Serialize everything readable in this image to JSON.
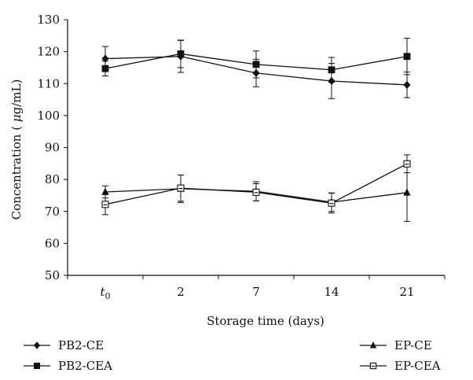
{
  "chart_data": {
    "type": "line",
    "title": "",
    "xlabel": "Storage time (days)",
    "ylabel": "Concentration (μg/mL)",
    "categories": [
      "t0",
      "2",
      "7",
      "14",
      "21"
    ],
    "ylim": [
      50,
      130
    ],
    "yticks": [
      50,
      60,
      70,
      80,
      90,
      100,
      110,
      120,
      130
    ],
    "grid": false,
    "legend_position": "bottom",
    "series": [
      {
        "name": "PB2-CE",
        "marker": "diamond",
        "values": [
          117.8,
          118.5,
          113.3,
          110.8,
          109.6
        ],
        "errors": [
          3.8,
          5.0,
          4.3,
          5.5,
          4.0
        ]
      },
      {
        "name": "PB2-CEA",
        "marker": "square",
        "values": [
          114.7,
          119.3,
          116.0,
          114.3,
          118.5
        ],
        "errors": [
          2.3,
          4.3,
          4.2,
          3.9,
          5.7
        ]
      },
      {
        "name": "EP-CE",
        "marker": "triangle",
        "values": [
          76.1,
          77.1,
          76.3,
          72.9,
          75.9
        ],
        "errors": [
          1.9,
          4.3,
          3.0,
          2.9,
          9.0
        ]
      },
      {
        "name": "EP-CEA",
        "marker": "square-open",
        "values": [
          72.2,
          77.3,
          76.0,
          72.6,
          84.9
        ],
        "errors": [
          3.2,
          4.1,
          2.7,
          3.1,
          2.8
        ]
      }
    ]
  }
}
